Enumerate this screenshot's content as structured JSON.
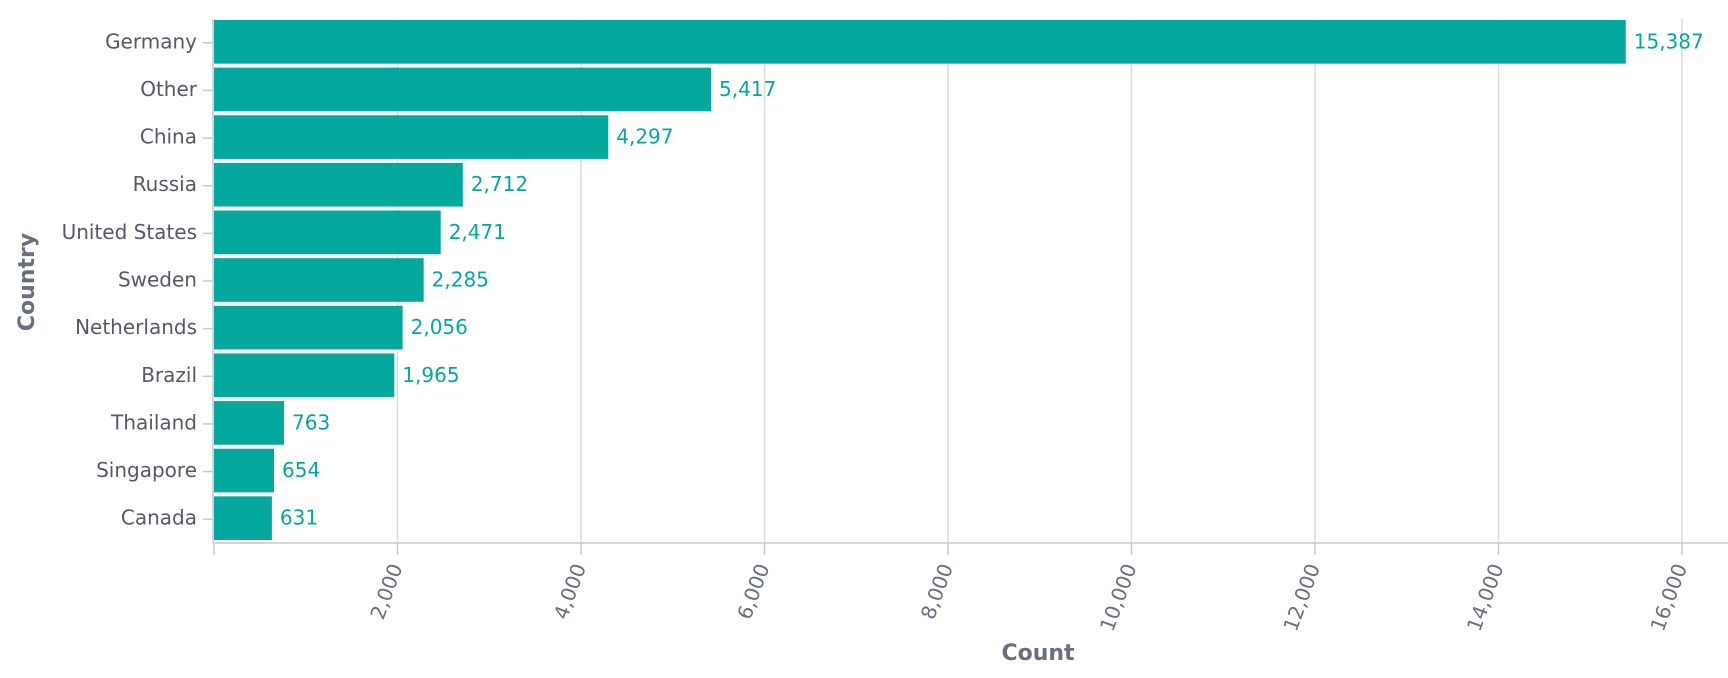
{
  "chart_data": {
    "type": "bar",
    "orientation": "horizontal",
    "title": "",
    "xlabel": "Count",
    "ylabel": "Country",
    "categories": [
      "Germany",
      "Other",
      "China",
      "Russia",
      "United States",
      "Sweden",
      "Netherlands",
      "Brazil",
      "Thailand",
      "Singapore",
      "Canada"
    ],
    "values": [
      15387,
      5417,
      4297,
      2712,
      2471,
      2285,
      2056,
      1965,
      763,
      654,
      631
    ],
    "value_labels": [
      "15,387",
      "5,417",
      "4,297",
      "2,712",
      "2,471",
      "2,285",
      "2,056",
      "1,965",
      "763",
      "654",
      "631"
    ],
    "xlim": [
      0,
      16000
    ],
    "x_ticks": [
      2000,
      4000,
      6000,
      8000,
      10000,
      12000,
      14000,
      16000
    ],
    "x_tick_labels": [
      "2,000",
      "4,000",
      "6,000",
      "8,000",
      "10,000",
      "12,000",
      "14,000",
      "16,000"
    ],
    "grid": "vertical",
    "legend": "none",
    "colors": {
      "bar": "#05a89c",
      "data_label": "#05a89c",
      "grid": "#dcdcdc",
      "axis": "#c8c8c8",
      "text": "#535966"
    }
  }
}
